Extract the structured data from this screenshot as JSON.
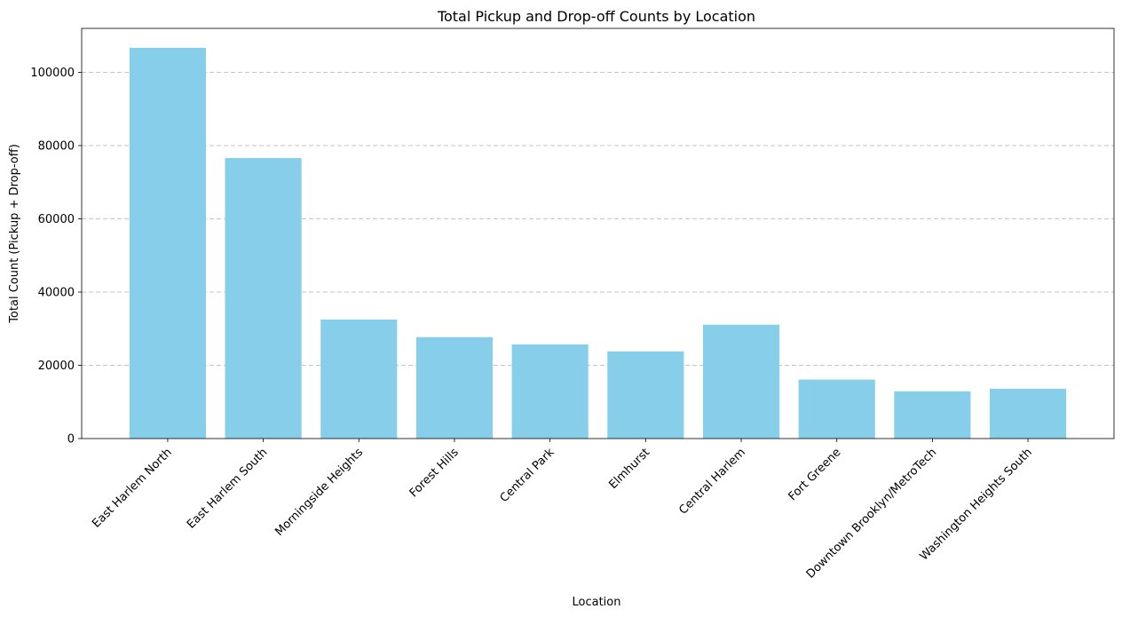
{
  "chart_data": {
    "type": "bar",
    "title": "Total Pickup and Drop-off Counts by Location",
    "xlabel": "Location",
    "ylabel": "Total Count (Pickup + Drop-off)",
    "categories": [
      "East Harlem North",
      "East Harlem South",
      "Morningside Heights",
      "Forest Hills",
      "Central Park",
      "Elmhurst",
      "Central Harlem",
      "Fort Greene",
      "Downtown Brooklyn/MetroTech",
      "Washington Heights South"
    ],
    "values": [
      106700,
      76600,
      32500,
      27700,
      25700,
      23800,
      31100,
      16100,
      12900,
      13600
    ],
    "ylim": [
      0,
      112000
    ],
    "yticks": [
      0,
      20000,
      40000,
      60000,
      80000,
      100000
    ],
    "ytick_labels": [
      "0",
      "20000",
      "40000",
      "60000",
      "80000",
      "100000"
    ],
    "grid": "y-dashed",
    "bar_color": "#87ceeb",
    "tick_rotation_deg": -45
  }
}
